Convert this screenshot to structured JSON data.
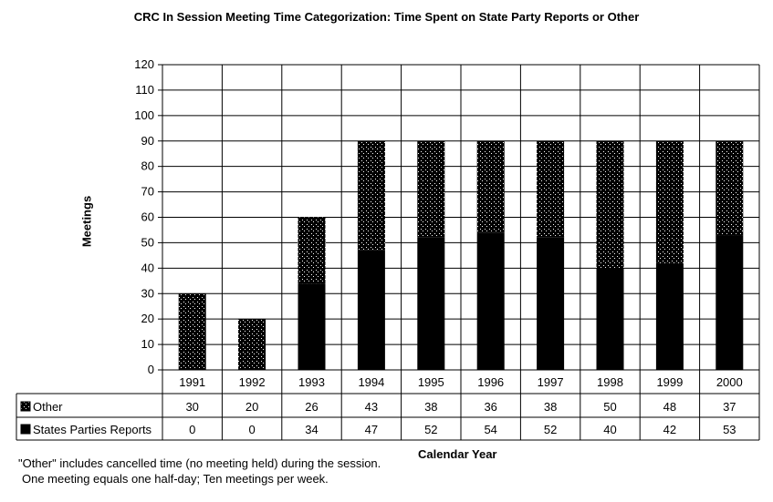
{
  "chart_data": {
    "type": "bar",
    "stacked": true,
    "title": "CRC In Session Meeting Time Categorization: Time Spent on State Party Reports or Other",
    "xlabel": "Calendar Year",
    "ylabel": "Meetings",
    "ylim": [
      0,
      120
    ],
    "ytick_step": 10,
    "grid": true,
    "legend_placement": "data-table",
    "categories": [
      "1991",
      "1992",
      "1993",
      "1994",
      "1995",
      "1996",
      "1997",
      "1998",
      "1999",
      "2000"
    ],
    "series": [
      {
        "name": "States Parties Reports",
        "values": [
          0,
          0,
          34,
          47,
          52,
          54,
          52,
          40,
          42,
          53
        ],
        "color": "#000000"
      },
      {
        "name": "Other",
        "values": [
          30,
          20,
          26,
          43,
          38,
          36,
          38,
          50,
          48,
          37
        ],
        "color": "#000000",
        "pattern": "dotted"
      }
    ]
  },
  "notes": [
    "\"Other\" includes cancelled time (no meeting held) during the session.",
    "One meeting equals one half-day; Ten meetings per week."
  ]
}
